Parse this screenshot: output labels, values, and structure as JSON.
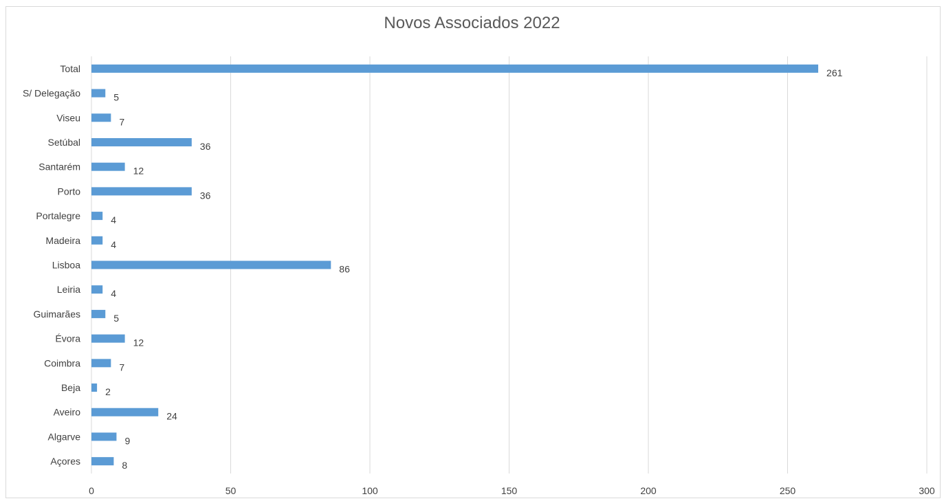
{
  "chart_data": {
    "type": "bar",
    "orientation": "horizontal",
    "title": "Novos Associados 2022",
    "xlabel": "",
    "ylabel": "",
    "categories": [
      "Total",
      "S/ Delegação",
      "Viseu",
      "Setúbal",
      "Santarém",
      "Porto",
      "Portalegre",
      "Madeira",
      "Lisboa",
      "Leiria",
      "Guimarães",
      "Évora",
      "Coimbra",
      "Beja",
      "Aveiro",
      "Algarve",
      "Açores"
    ],
    "values": [
      261,
      5,
      7,
      36,
      12,
      36,
      4,
      4,
      86,
      4,
      5,
      12,
      7,
      2,
      24,
      9,
      8
    ],
    "xlim": [
      0,
      300
    ],
    "xticks": [
      0,
      50,
      100,
      150,
      200,
      250,
      300
    ],
    "grid": true,
    "legend": "none",
    "data_labels": true,
    "colors": {
      "bar": "#5B9BD5",
      "grid": "#d9d9d9",
      "text": "#404040",
      "title": "#595959"
    }
  }
}
